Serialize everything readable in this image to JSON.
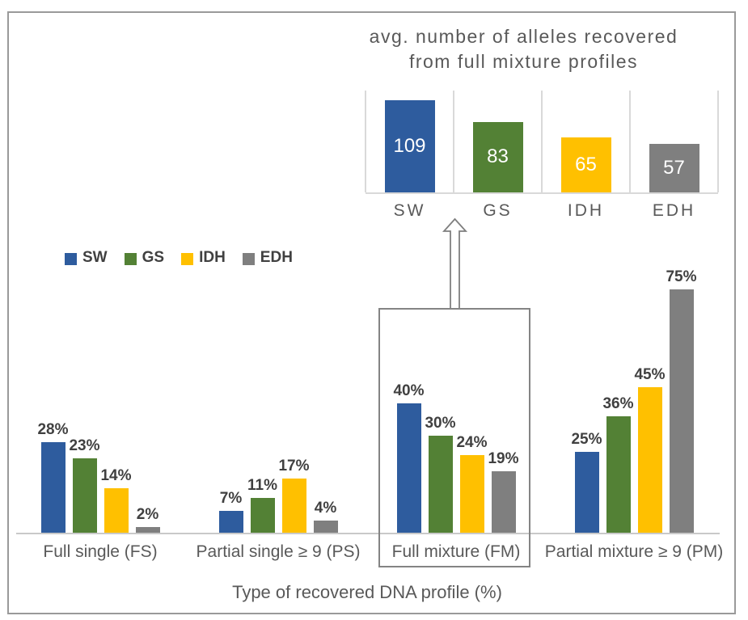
{
  "inset": {
    "title_line1": "avg. number of alleles recovered",
    "title_line2": "from full mixture profiles"
  },
  "main": {
    "xlabel": "Type of recovered DNA profile (%)"
  },
  "colors": {
    "SW": "#2e5c9e",
    "GS": "#538135",
    "IDH": "#ffc000",
    "EDH": "#7f7f7f",
    "gridline": "#d9d9d9",
    "axis_line": "#c9c9c9",
    "label_text": "#404040",
    "axis_text": "#595959",
    "frame_border": "#9a9a9a",
    "annotation_outline": "#848484"
  },
  "chart_data": [
    {
      "id": "main-chart",
      "type": "bar",
      "title": "",
      "xlabel": "Type of recovered DNA profile (%)",
      "ylabel": "",
      "categories": [
        "Full single (FS)",
        "Partial single ≥ 9 (PS)",
        "Full mixture (FM)",
        "Partial mixture ≥ 9 (PM)"
      ],
      "series": [
        {
          "name": "SW",
          "color": "#2e5c9e",
          "values": [
            28,
            7,
            40,
            25
          ]
        },
        {
          "name": "GS",
          "color": "#538135",
          "values": [
            23,
            11,
            30,
            36
          ]
        },
        {
          "name": "IDH",
          "color": "#ffc000",
          "values": [
            14,
            17,
            24,
            45
          ]
        },
        {
          "name": "EDH",
          "color": "#7f7f7f",
          "values": [
            2,
            4,
            19,
            75
          ]
        }
      ],
      "value_suffix": "%",
      "ylim": [
        0,
        82
      ],
      "grid": false,
      "legend_position": "upper-left",
      "annotations": {
        "highlighted_category": "Full mixture (FM)",
        "arrow": "hollow up-arrow from Full mixture (FM) box to inset chart"
      }
    },
    {
      "id": "inset-chart",
      "type": "bar",
      "title": "avg. number of alleles recovered from full mixture profiles",
      "categories": [
        "SW",
        "GS",
        "IDH",
        "EDH"
      ],
      "values": [
        109,
        83,
        65,
        57
      ],
      "colors": [
        "#2e5c9e",
        "#538135",
        "#ffc000",
        "#7f7f7f"
      ],
      "ylim": [
        0,
        120
      ],
      "grid": "vertical-category-separators",
      "value_labels": "inside bars, white"
    }
  ]
}
